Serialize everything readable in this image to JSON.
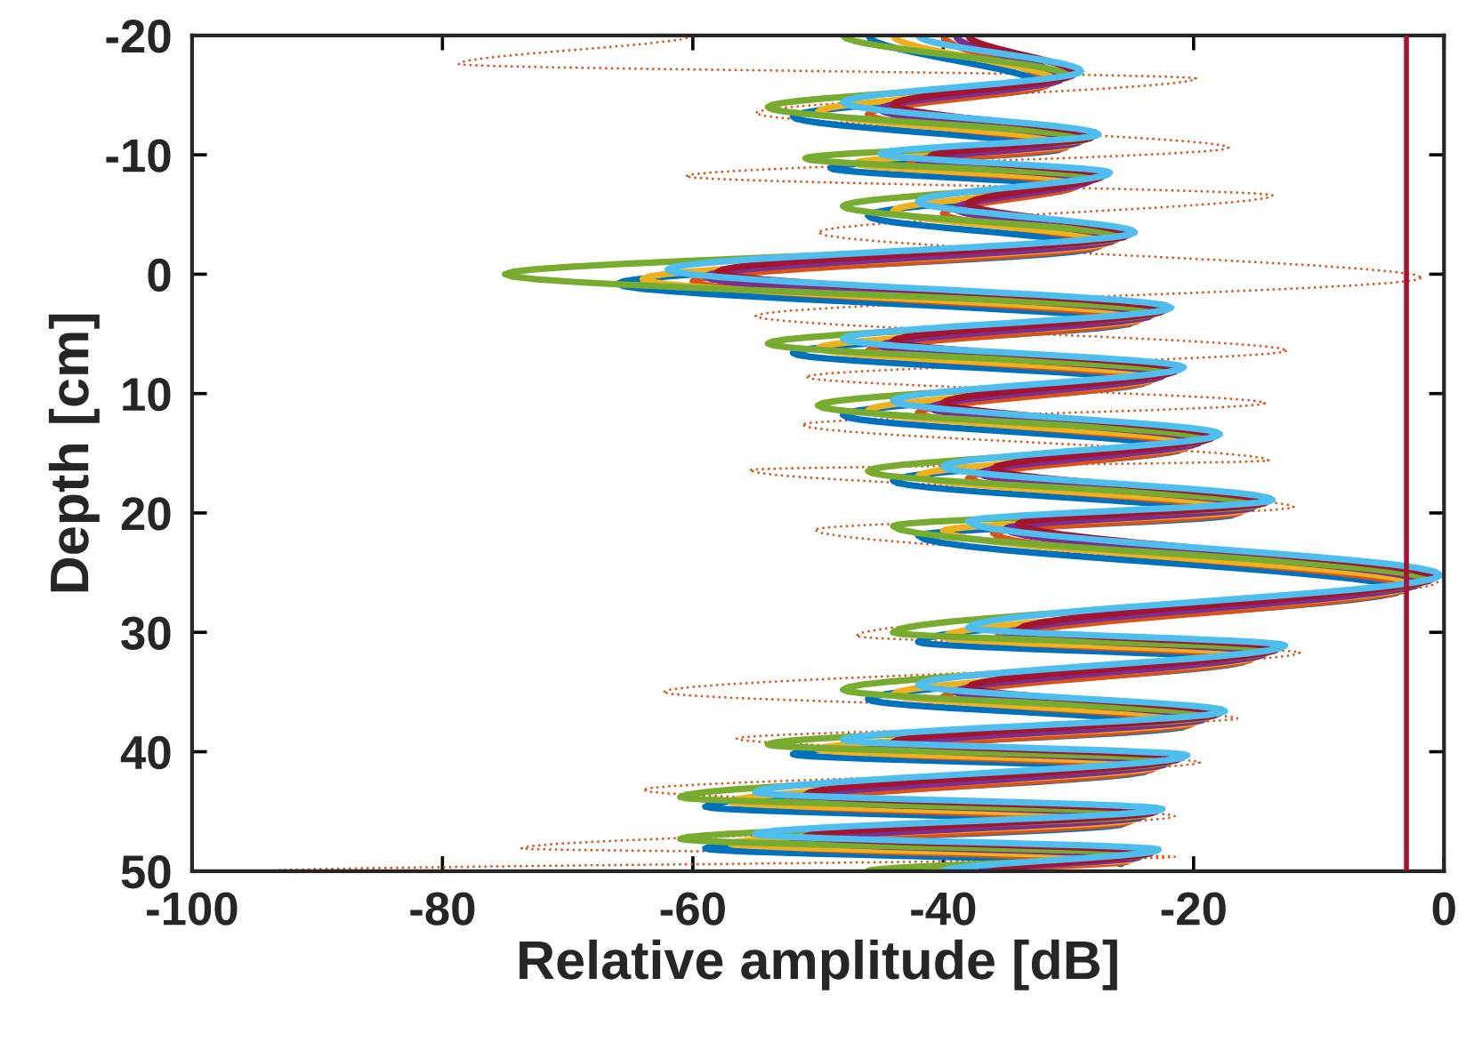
{
  "chart_data": {
    "type": "line",
    "xlabel": "Relative amplitude [dB]",
    "ylabel": "Depth [cm]",
    "xlim": [
      -100,
      0
    ],
    "xticks": [
      -100,
      -80,
      -60,
      -40,
      -20,
      0
    ],
    "ylim": [
      50,
      -20
    ],
    "yticks": [
      -20,
      -10,
      0,
      10,
      20,
      30,
      40,
      50
    ],
    "grid": false,
    "legend": false,
    "marker": "none",
    "series": [
      {
        "color": "#d95319",
        "line_style": "dotted",
        "x": [
          -60,
          -78.7,
          -19.8,
          -55,
          -17.2,
          -60.6,
          -13.7,
          -50,
          -1.7,
          -55,
          -12.5,
          -51,
          -14.3,
          -51.3,
          -14,
          -55.5,
          -12,
          -50.3,
          -0.5,
          -47,
          -11.5,
          -62.4,
          -16.5,
          -56.5,
          -19.5,
          -64,
          -21.5,
          -73.7,
          -21.5,
          -94
        ],
        "values": [
          -20,
          -17.6,
          -16.4,
          -13.5,
          -10.6,
          -8.2,
          -6.6,
          -3.5,
          0.3,
          3.5,
          6.4,
          8.6,
          10.8,
          12.6,
          15.6,
          16.4,
          19.5,
          21.4,
          25.8,
          30.3,
          31.7,
          35,
          37.2,
          38.9,
          40.9,
          43.2,
          45.4,
          48.1,
          48.8,
          50
        ]
      },
      {
        "color": "#0072bd",
        "line_style": "solid",
        "x": [
          -46,
          -32,
          -52,
          -30.6,
          -49,
          -29.7,
          -46,
          -27.7,
          -66,
          -24.8,
          -52,
          -23.8,
          -48,
          -20.9,
          -44,
          -16.7,
          -42,
          -3.3,
          -42,
          -15.7,
          -46,
          -20.5,
          -52,
          -23.5,
          -59,
          -25.5,
          -59,
          -25.8,
          null
        ],
        "values": [
          -20,
          -15.8,
          -13.2,
          -10.5,
          -8.9,
          -7.3,
          -4.9,
          -2.3,
          0.8,
          4,
          6.6,
          9,
          11.8,
          14.6,
          17.3,
          20.1,
          21.9,
          26.4,
          30.8,
          32.3,
          35.6,
          37.8,
          40.2,
          41.5,
          44.6,
          46,
          48.1,
          49.4,
          null
        ]
      },
      {
        "color": "#d95319",
        "line_style": "solid",
        "x": [
          -40,
          -31.5,
          -46,
          -30.1,
          -43,
          -29.2,
          -40,
          -27.2,
          -60,
          -24.3,
          -46,
          -23.3,
          -42,
          -20.4,
          -38,
          -16.2,
          -36,
          -2.8,
          -36,
          -15.2,
          -40,
          -20,
          -46,
          -23,
          -53,
          -25,
          -53,
          -25.3,
          -38
        ],
        "values": [
          -20,
          -16,
          -13.4,
          -10.7,
          -9.1,
          -7.5,
          -5.1,
          -2.5,
          0.6,
          3.8,
          6.4,
          8.8,
          11.6,
          14.4,
          17.1,
          19.9,
          21.7,
          26.2,
          30.6,
          32.1,
          35.4,
          37.6,
          40,
          41.3,
          44.4,
          45.8,
          47.9,
          49.2,
          50
        ]
      },
      {
        "color": "#edb120",
        "line_style": "solid",
        "x": [
          -44,
          -31,
          -50,
          -29.6,
          -47,
          -28.7,
          -44,
          -26.7,
          -64,
          -23.8,
          -50,
          -22.8,
          -46,
          -19.9,
          -42,
          -15.7,
          -40,
          -2.3,
          -40,
          -14.7,
          -44,
          -19.5,
          -50,
          -22.5,
          -57,
          -24.5,
          -57,
          -24.8,
          -42
        ],
        "values": [
          -20,
          -16.2,
          -13.6,
          -10.9,
          -9.3,
          -7.7,
          -5.3,
          -2.7,
          0.4,
          3.6,
          6.2,
          8.6,
          11.4,
          14.2,
          16.9,
          19.7,
          21.5,
          26,
          30.4,
          31.9,
          35.2,
          37.4,
          39.8,
          41.1,
          44.2,
          45.6,
          47.7,
          49,
          50
        ]
      },
      {
        "color": "#7e2f8e",
        "line_style": "solid",
        "x": [
          -39,
          -30.5,
          -45,
          -29.1,
          -42,
          -28.2,
          -39,
          -26.2,
          -59,
          -23.3,
          -45,
          -22.3,
          -41,
          -19.4,
          -37,
          -15.2,
          -35,
          -1.8,
          -35,
          -14.2,
          -39,
          -19,
          -45,
          -22,
          -52,
          -24,
          -52,
          -24.3,
          -37
        ],
        "values": [
          -20,
          -16.4,
          -13.8,
          -11.1,
          -9.5,
          -7.9,
          -5.5,
          -2.9,
          0.2,
          3.4,
          6,
          8.4,
          11.2,
          14,
          16.7,
          19.5,
          21.3,
          25.8,
          30.2,
          31.7,
          35,
          37.2,
          39.6,
          40.9,
          44,
          45.4,
          47.5,
          48.8,
          50
        ]
      },
      {
        "color": "#77ac30",
        "line_style": "solid",
        "x": [
          -48,
          -30,
          -54,
          -28.6,
          -51,
          -27.7,
          -48,
          -25.7,
          -75,
          -22.8,
          -54,
          -21.8,
          -50,
          -18.9,
          -46,
          -14.7,
          -44,
          -1.3,
          -44,
          -13.7,
          -48,
          -18.5,
          -54,
          -21.5,
          -61,
          -23.5,
          -61,
          -23.8,
          -46
        ],
        "values": [
          -20,
          -16.6,
          -14,
          -11.3,
          -9.7,
          -8.1,
          -5.7,
          -3.1,
          0,
          3.2,
          5.8,
          8.2,
          11,
          13.8,
          16.5,
          19.3,
          21.1,
          25.6,
          30,
          31.5,
          34.8,
          37,
          39.4,
          40.7,
          43.8,
          45.2,
          47.3,
          48.6,
          50
        ]
      },
      {
        "color": "#a2142f",
        "line_style": "solid",
        "x": [
          -38,
          -29.5,
          -44,
          -28.1,
          -41,
          -27.2,
          -38,
          -25.2,
          -58,
          -22.3,
          -44,
          -21.3,
          -40,
          -18.4,
          -36,
          -14.2,
          -34,
          -0.8,
          -34,
          -13.2,
          -38,
          -18,
          -44,
          -21,
          -51,
          -23,
          -51,
          -23.3,
          -36
        ],
        "values": [
          -20,
          -16.8,
          -14.2,
          -11.5,
          -9.9,
          -8.3,
          -5.9,
          -3.3,
          -0.2,
          3,
          5.6,
          8,
          10.8,
          13.6,
          16.3,
          19.1,
          20.9,
          25.4,
          29.8,
          31.3,
          34.6,
          36.8,
          39.2,
          40.5,
          43.6,
          45,
          47.1,
          48.4,
          50
        ]
      },
      {
        "color": "#4dbeee",
        "line_style": "solid",
        "x": [
          -42,
          -29,
          -48,
          -27.6,
          -45,
          -26.7,
          -42,
          -24.7,
          -62,
          -21.8,
          -48,
          -20.8,
          -44,
          -17.9,
          -40,
          -13.7,
          -38,
          -0.3,
          -38,
          -12.7,
          -42,
          -17.5,
          -48,
          -20.5,
          -55,
          -22.5,
          -55,
          -22.8,
          -40
        ],
        "values": [
          -20,
          -17,
          -14.4,
          -11.7,
          -10.1,
          -8.5,
          -6.1,
          -3.5,
          -0.4,
          2.8,
          5.4,
          7.8,
          10.6,
          13.4,
          16.1,
          18.9,
          20.7,
          25.2,
          29.6,
          31.1,
          34.4,
          36.6,
          39,
          40.3,
          43.4,
          44.8,
          46.9,
          48.2,
          50
        ]
      }
    ],
    "ref_lines": [
      {
        "axis": "x",
        "value": -3,
        "color": "#a2142f",
        "line_style": "solid"
      }
    ]
  }
}
